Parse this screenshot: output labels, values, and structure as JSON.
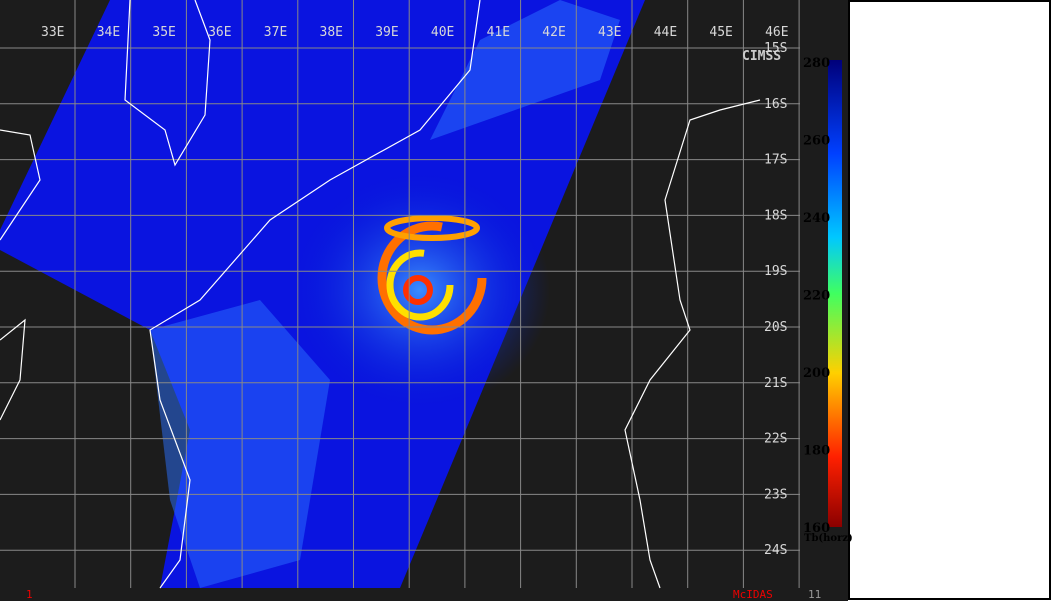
{
  "map": {
    "longitudes": [
      "33E",
      "34E",
      "35E",
      "36E",
      "37E",
      "38E",
      "39E",
      "40E",
      "41E",
      "42E",
      "43E",
      "44E",
      "45E",
      "46E"
    ],
    "latitudes": [
      "15S",
      "16S",
      "17S",
      "18S",
      "19S",
      "20S",
      "21S",
      "22S",
      "23S",
      "24S"
    ],
    "logo": "CIMSS"
  },
  "colorbar": {
    "ticks": [
      280,
      260,
      240,
      220,
      200,
      180,
      160
    ],
    "label": "Tb(horz)"
  },
  "status": {
    "left": "1",
    "center": "McIDAS",
    "right": "11"
  }
}
